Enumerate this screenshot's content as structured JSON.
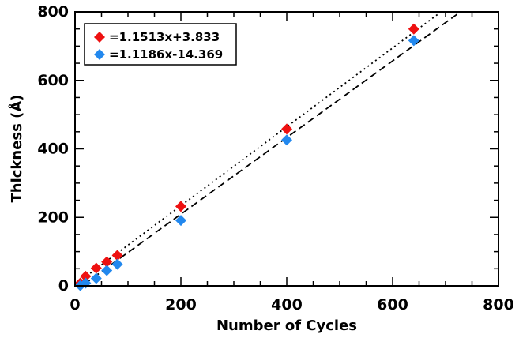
{
  "chart_data": {
    "type": "scatter",
    "title": "",
    "xlabel": "Number of Cycles",
    "ylabel": "Thickness (Å)",
    "xlim": [
      0,
      800
    ],
    "ylim": [
      0,
      800
    ],
    "xticks": [
      0,
      200,
      400,
      600,
      800
    ],
    "yticks": [
      0,
      200,
      400,
      600,
      800
    ],
    "xtick_labels": [
      "0",
      "200",
      "400",
      "600",
      "800"
    ],
    "ytick_labels": [
      "0",
      "200",
      "400",
      "600",
      "800"
    ],
    "grid": false,
    "legend_position": "top-left",
    "series": [
      {
        "name": "=1.1513x+3.833",
        "color": "#ee1111",
        "marker": "diamond",
        "fit_line_style": "dotted",
        "fit": {
          "slope": 1.1513,
          "intercept": 3.833
        },
        "points": [
          {
            "x": 10,
            "y": 8
          },
          {
            "x": 20,
            "y": 28
          },
          {
            "x": 40,
            "y": 52
          },
          {
            "x": 60,
            "y": 70
          },
          {
            "x": 80,
            "y": 89
          },
          {
            "x": 200,
            "y": 232
          },
          {
            "x": 400,
            "y": 458
          },
          {
            "x": 640,
            "y": 750
          }
        ]
      },
      {
        "name": "=1.1186x-14.369",
        "color": "#2288ee",
        "marker": "diamond",
        "fit_line_style": "dashed",
        "fit": {
          "slope": 1.1186,
          "intercept": -14.369
        },
        "points": [
          {
            "x": 10,
            "y": 1
          },
          {
            "x": 20,
            "y": 8
          },
          {
            "x": 40,
            "y": 22
          },
          {
            "x": 60,
            "y": 45
          },
          {
            "x": 80,
            "y": 63
          },
          {
            "x": 200,
            "y": 191
          },
          {
            "x": 400,
            "y": 426
          },
          {
            "x": 640,
            "y": 716
          }
        ]
      }
    ]
  }
}
